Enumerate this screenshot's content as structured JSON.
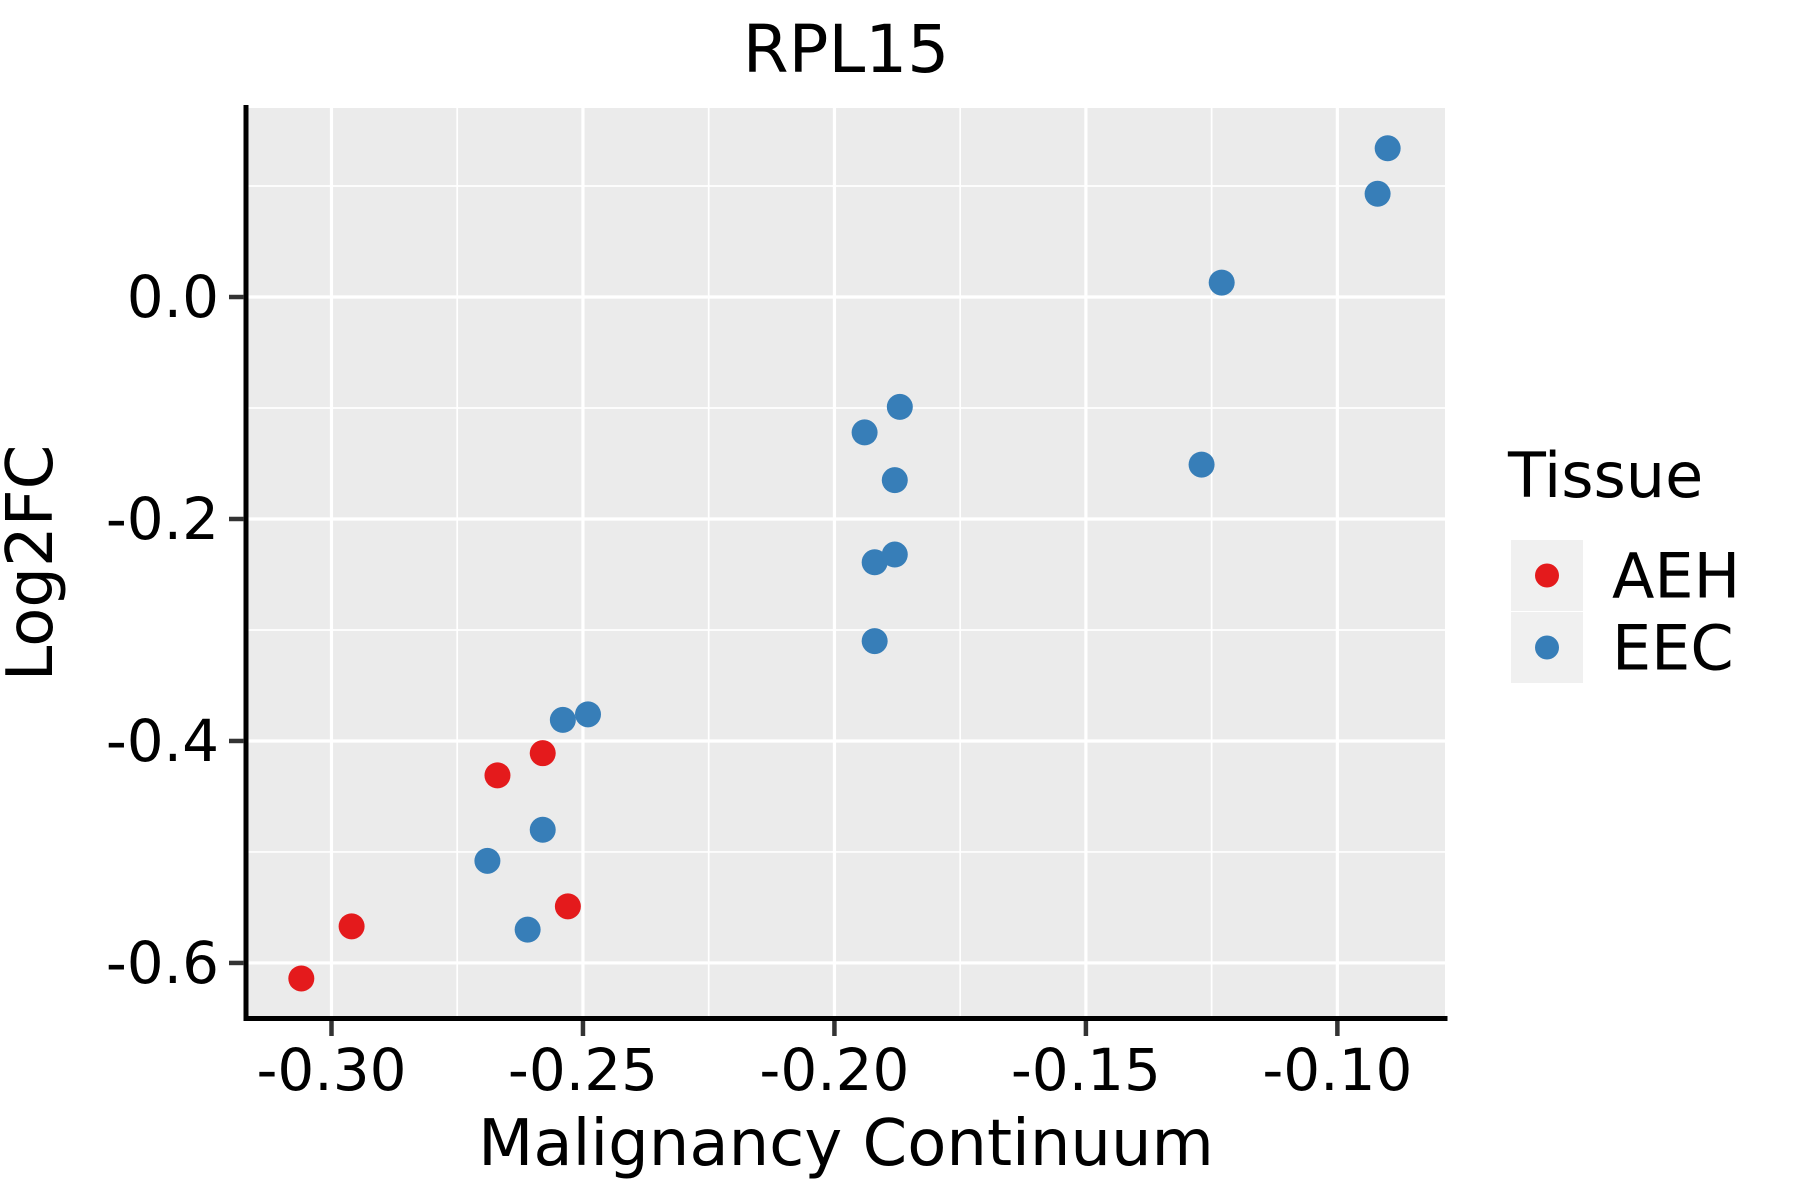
{
  "title": "RPL15",
  "chart_data": {
    "type": "scatter",
    "title": "RPL15",
    "xlabel": "Malignancy Continuum",
    "ylabel": "Log2FC",
    "xlim": [
      -0.3168,
      -0.0786
    ],
    "ylim": [
      -0.6496,
      0.1703
    ],
    "x_major_ticks": {
      "values": [
        -0.3,
        -0.25,
        -0.2,
        -0.15,
        -0.1
      ],
      "labels": [
        "-0.30",
        "-0.25",
        "-0.20",
        "-0.15",
        "-0.10"
      ]
    },
    "y_major_ticks": {
      "values": [
        0.0,
        -0.2,
        -0.4,
        -0.6
      ],
      "labels": [
        "0.0",
        "-0.2",
        "-0.4",
        "-0.6"
      ]
    },
    "x_minor_ticks": [
      -0.275,
      -0.225,
      -0.175,
      -0.125
    ],
    "y_minor_ticks": [
      0.1,
      -0.1,
      -0.3,
      -0.5
    ],
    "grid": "on",
    "panel_background": "#EBEBEB",
    "grid_color": "#FFFFFF",
    "legend_position": "right",
    "legend_title": "Tissue",
    "legend_key_background": "#F0F0F0",
    "series": [
      {
        "name": "AEH",
        "color": "#E41A1C",
        "points": [
          [
            -0.306,
            -0.614
          ],
          [
            -0.296,
            -0.567
          ],
          [
            -0.267,
            -0.431
          ],
          [
            -0.258,
            -0.411
          ],
          [
            -0.253,
            -0.549
          ]
        ]
      },
      {
        "name": "EEC",
        "color": "#377EB8",
        "points": [
          [
            -0.269,
            -0.508
          ],
          [
            -0.261,
            -0.57
          ],
          [
            -0.258,
            -0.48
          ],
          [
            -0.254,
            -0.381
          ],
          [
            -0.249,
            -0.376
          ],
          [
            -0.194,
            -0.122
          ],
          [
            -0.192,
            -0.239
          ],
          [
            -0.192,
            -0.31
          ],
          [
            -0.188,
            -0.232
          ],
          [
            -0.188,
            -0.165
          ],
          [
            -0.187,
            -0.099
          ],
          [
            -0.127,
            -0.151
          ],
          [
            -0.123,
            0.013
          ],
          [
            -0.092,
            0.093
          ],
          [
            -0.09,
            0.134
          ]
        ]
      }
    ]
  }
}
